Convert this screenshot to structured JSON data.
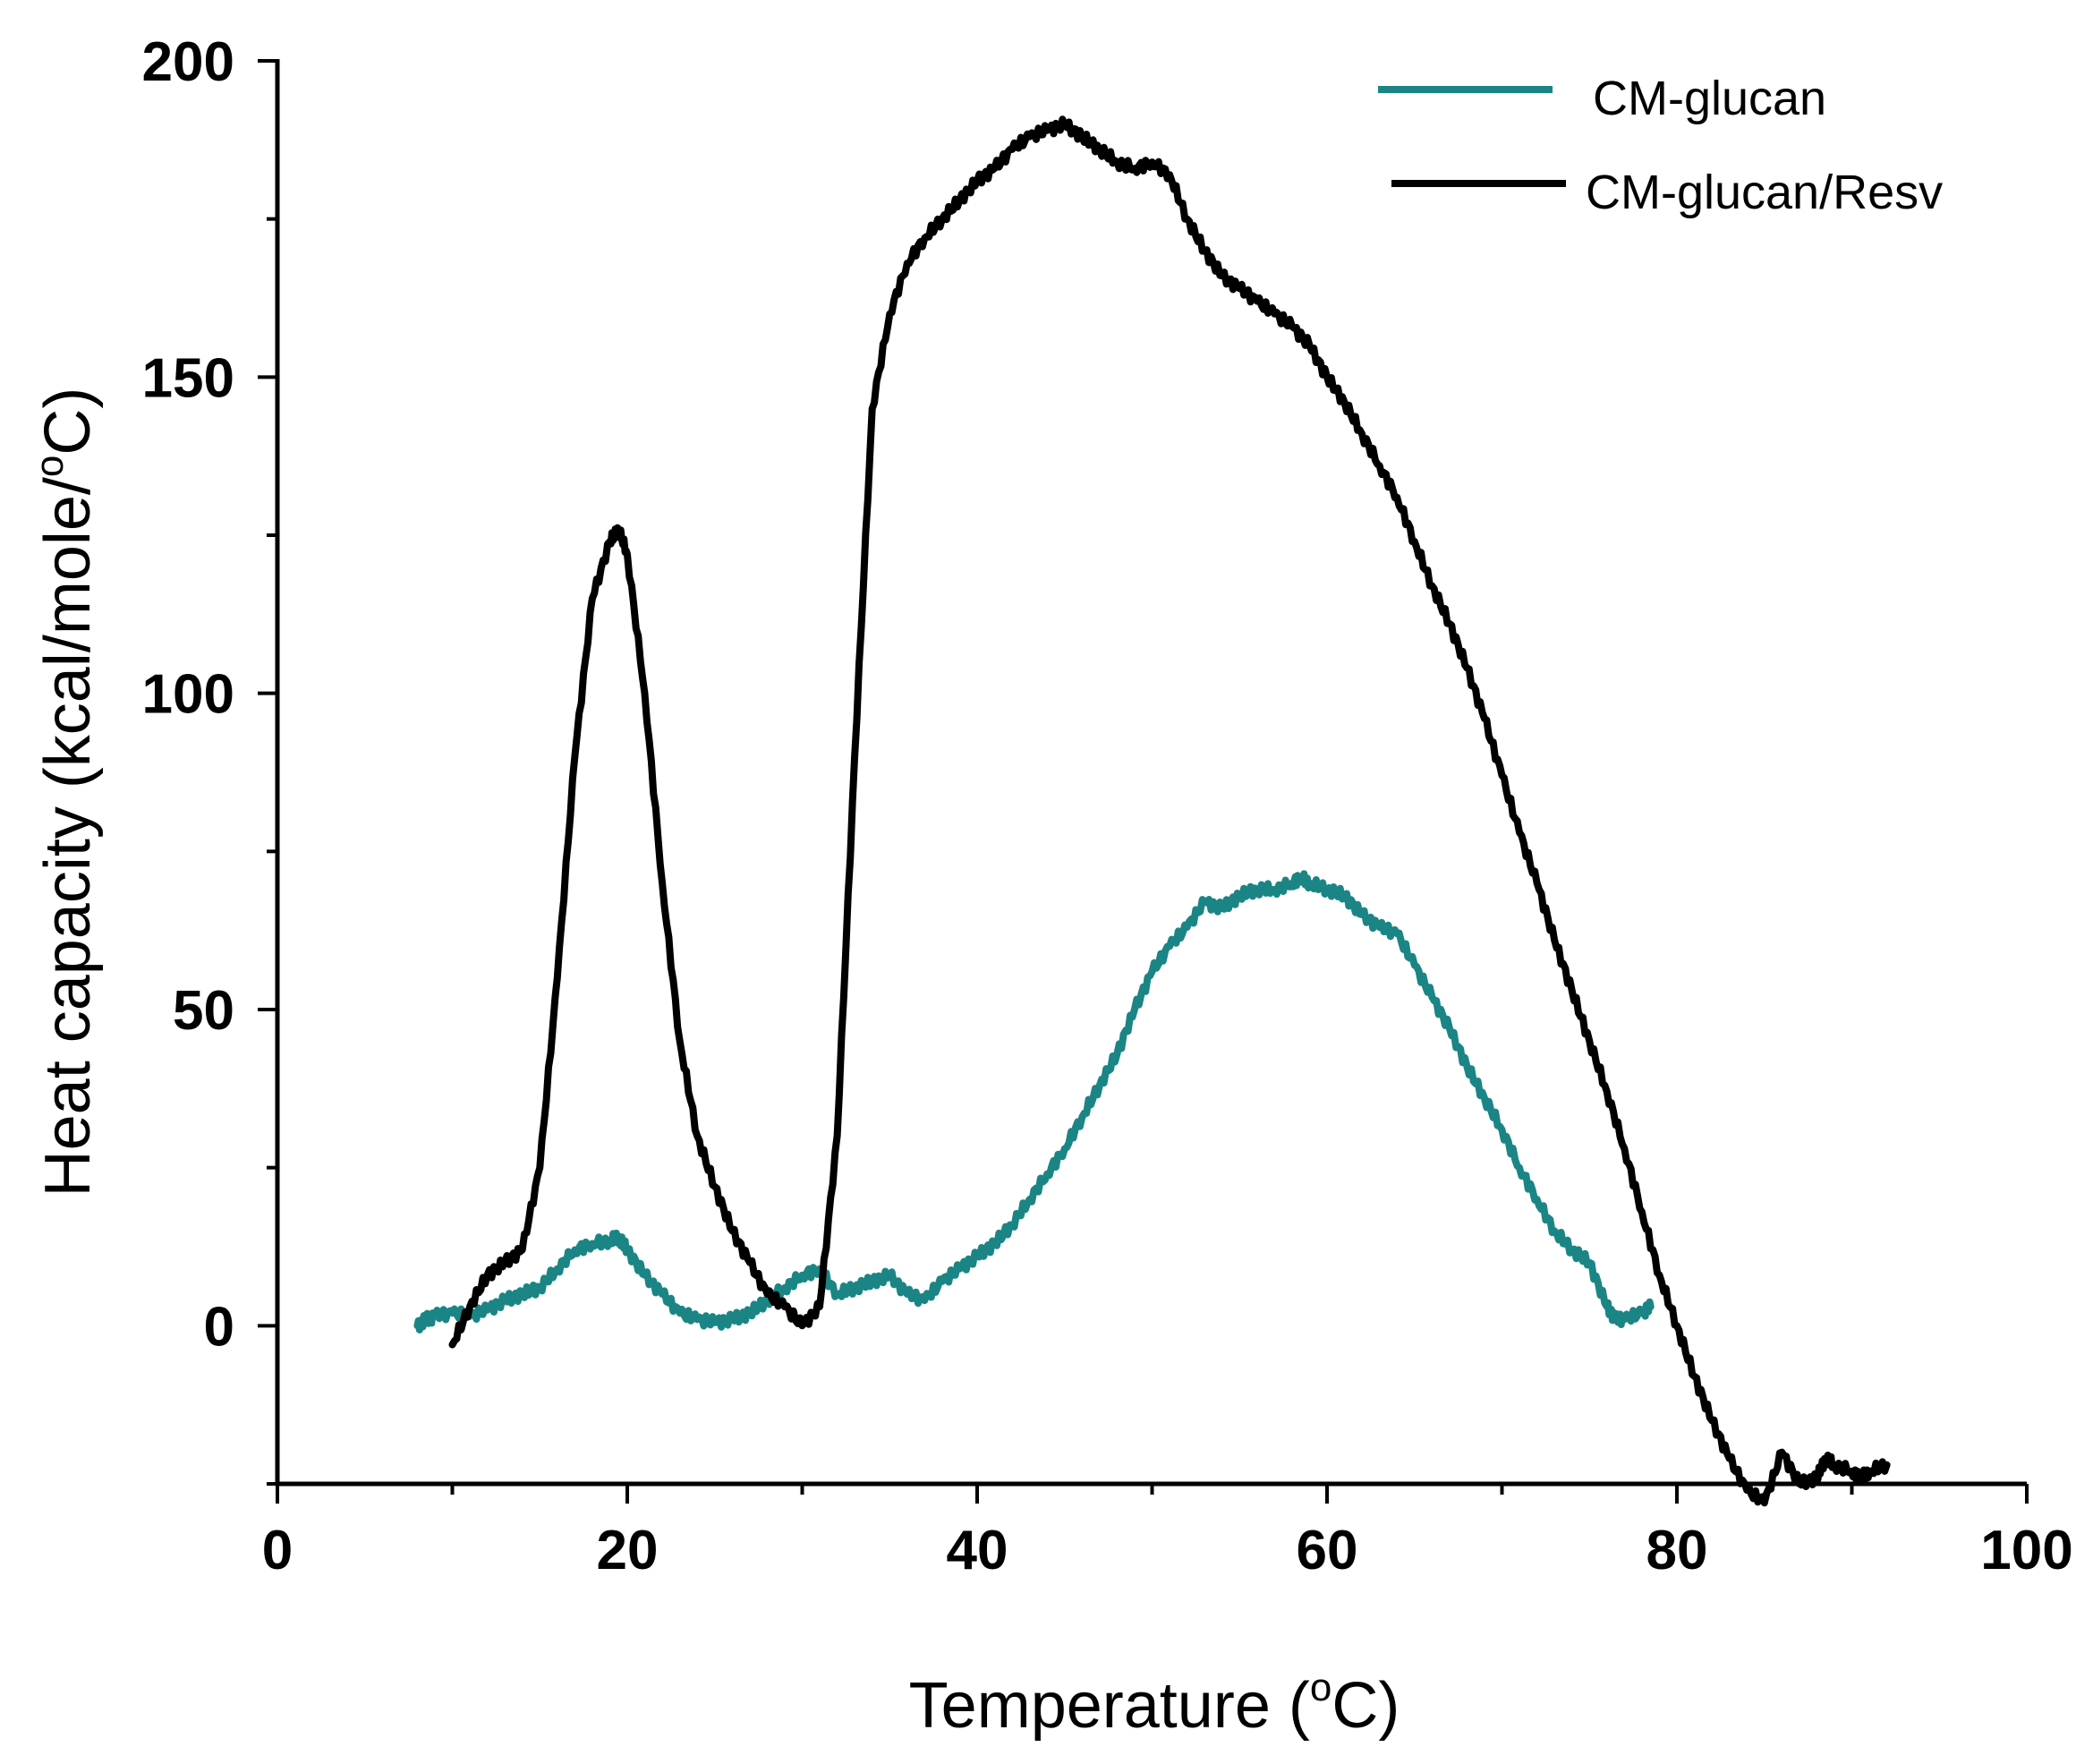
{
  "chart_data": {
    "type": "line",
    "title": "",
    "xlabel": "Temperature",
    "xlabel_unit": "C",
    "ylabel": "Heat capacity (kcal/mole/",
    "ylabel_unit": "C)",
    "degree_symbol": "o",
    "xlim": [
      0,
      100
    ],
    "ylim": [
      -25,
      200
    ],
    "xticks": [
      0,
      20,
      40,
      60,
      80,
      100
    ],
    "yticks": [
      0,
      50,
      100,
      150,
      200
    ],
    "xtick_labels": [
      "0",
      "20",
      "40",
      "60",
      "80",
      "100"
    ],
    "ytick_labels": [
      "0",
      "50",
      "100",
      "150",
      "200"
    ],
    "grid": false,
    "legend_position": "top-right",
    "series": [
      {
        "name": "CM-glucan",
        "color": "#1b8585",
        "x": [
          8,
          8.5,
          9,
          10,
          11,
          12,
          13,
          14,
          15,
          16,
          17,
          18,
          19,
          19.5,
          20,
          21,
          22,
          23,
          24,
          25,
          26,
          27,
          28,
          29,
          30,
          31,
          32,
          33,
          34,
          35,
          36,
          37,
          38,
          39,
          40,
          41,
          42,
          43,
          44,
          45,
          46,
          47,
          48,
          49,
          50,
          51,
          52,
          53,
          54,
          55,
          56,
          57,
          58,
          58.5,
          59,
          60,
          61,
          62,
          63,
          64,
          65,
          66,
          67,
          68,
          69,
          70,
          71,
          72,
          73,
          74,
          75,
          76,
          76.5,
          77,
          78,
          78.5
        ],
        "y": [
          0,
          1,
          1.5,
          2,
          1.5,
          2.5,
          4,
          5,
          6,
          9,
          12,
          13,
          13.5,
          14,
          12,
          8,
          5,
          2,
          1,
          0.5,
          1,
          2,
          4,
          6,
          8,
          9,
          5,
          6,
          7,
          8,
          5,
          4,
          7,
          9,
          11,
          13,
          16,
          20,
          24,
          28,
          33,
          38,
          43,
          50,
          56,
          60,
          63,
          67,
          66,
          68,
          69,
          69,
          70,
          71,
          70,
          69,
          68,
          65,
          63,
          62,
          57,
          52,
          47,
          41,
          36,
          31,
          25,
          20,
          15,
          12,
          10,
          3,
          1,
          1,
          2,
          3
        ]
      },
      {
        "name": "CM-glucan/Resv",
        "color": "#000000",
        "x": [
          10,
          11,
          12,
          13,
          14,
          15,
          16,
          17,
          18,
          19,
          19.5,
          20,
          21,
          22,
          23,
          24,
          25,
          26,
          27,
          28,
          29,
          30,
          31,
          32,
          33,
          34,
          35,
          36,
          37,
          38,
          39,
          40,
          41,
          42,
          43,
          44,
          45,
          46,
          47,
          48,
          49,
          50,
          51,
          52,
          53,
          54,
          55,
          56,
          57,
          58,
          59,
          60,
          61,
          62,
          63,
          64,
          65,
          66,
          67,
          68,
          69,
          70,
          71,
          72,
          73,
          74,
          75,
          76,
          77,
          78,
          79,
          80,
          81,
          82,
          83,
          84,
          85,
          86,
          87,
          88,
          88.5,
          89,
          90,
          90.5,
          91,
          92
        ],
        "y": [
          -3,
          3,
          8,
          10,
          12,
          25,
          55,
          90,
          115,
          124,
          126,
          122,
          100,
          70,
          45,
          30,
          22,
          15,
          10,
          5,
          3,
          0,
          3,
          30,
          90,
          145,
          160,
          168,
          172,
          175,
          178,
          181,
          183,
          186,
          188,
          189,
          190,
          188,
          186,
          184,
          183,
          184,
          182,
          175,
          170,
          166,
          164,
          162,
          160,
          158,
          155,
          150,
          146,
          141,
          136,
          131,
          124,
          117,
          111,
          104,
          96,
          87,
          78,
          70,
          61,
          53,
          45,
          37,
          28,
          18,
          8,
          0,
          -8,
          -15,
          -21,
          -26,
          -28,
          -20,
          -25,
          -24,
          -21,
          -22,
          -23,
          -24,
          -23,
          -22
        ]
      }
    ]
  }
}
